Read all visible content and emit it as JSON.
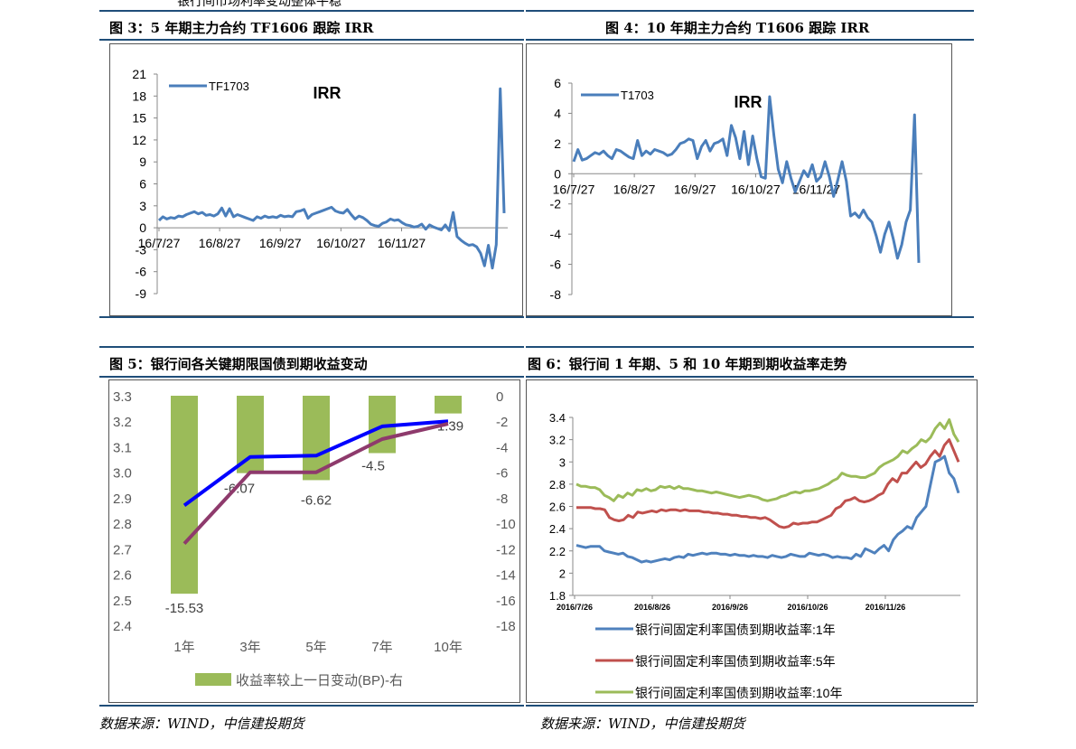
{
  "top_fragment": "银行间市场利率变动整体平稳",
  "fig3": {
    "title": "图 3：5 年期主力合约 TF1606 跟踪 IRR"
  },
  "fig4": {
    "title": "图 4：10 年期主力合约 T1606 跟踪 IRR"
  },
  "fig5": {
    "title": "图 5：银行间各关键期限国债到期收益变动"
  },
  "fig6": {
    "title": "图 6：银行间 1 年期、5 和 10 年期到期收益率走势"
  },
  "source_left": "数据来源：WIND，中信建投期货",
  "source_right": "数据来源：WIND，中信建投期货",
  "colors": {
    "rule": "#1f4e79",
    "irr": "#4a7ebb",
    "bar": "#9bbb59",
    "blue": "#0000ff",
    "maroon": "#8e3a6c",
    "y1": "#4f81bd",
    "y5": "#c0504d",
    "y10": "#9bbb59"
  },
  "chart_data": [
    {
      "type": "line",
      "title": "IRR",
      "xtick_labels": [
        "16/7/27",
        "16/8/27",
        "16/9/27",
        "16/10/27",
        "16/11/27"
      ],
      "ylim": [
        -9,
        21
      ],
      "yticks": [
        -9,
        -6,
        -3,
        0,
        3,
        6,
        9,
        12,
        15,
        18,
        21
      ],
      "legend": "top-left",
      "series": [
        {
          "name": "TF1703",
          "values": [
            1,
            1.5,
            1.2,
            1.4,
            1.3,
            1.6,
            1.5,
            1.8,
            2,
            2.2,
            1.9,
            2.1,
            1.7,
            1.8,
            1.6,
            1.9,
            2.7,
            1.6,
            2.6,
            1.5,
            1.8,
            1.6,
            1.4,
            1.2,
            1,
            1.5,
            1.3,
            1.6,
            1.4,
            1.5,
            1.4,
            1.7,
            1.5,
            1.6,
            1.5,
            2.2,
            2.3,
            2.5,
            1.3,
            1.8,
            2,
            2.2,
            2.4,
            2.6,
            2.8,
            2.3,
            2.1,
            2.0,
            2.5,
            1.8,
            1.2,
            1.6,
            1.4,
            1,
            0.5,
            0.3,
            0.2,
            0.6,
            0.8,
            1.2,
            1,
            1.1,
            0.7,
            0.4,
            0.3,
            0.1,
            0.2,
            0.5,
            -0.2,
            0.4,
            0.1,
            -0.1,
            -0.3,
            0.4,
            -0.4,
            2.1,
            -1.2,
            -1.7,
            -2.1,
            -2.4,
            -2.3,
            -2.6,
            -3.5,
            -5.2,
            -2.4,
            -5.5,
            -2.3,
            19,
            2
          ]
        }
      ]
    },
    {
      "type": "line",
      "title": "IRR",
      "xtick_labels": [
        "16/7/27",
        "16/8/27",
        "16/9/27",
        "16/10/27",
        "16/11/27"
      ],
      "ylim": [
        -8,
        6
      ],
      "yticks": [
        -8,
        -6,
        -4,
        -2,
        0,
        2,
        4,
        6
      ],
      "legend": "top-left",
      "series": [
        {
          "name": "T1703",
          "values": [
            0.8,
            1.6,
            0.9,
            1.0,
            1.2,
            1.4,
            1.3,
            1.5,
            1.2,
            1.0,
            1.6,
            1.5,
            1.3,
            1.1,
            1.0,
            2.2,
            1.2,
            1.5,
            1.3,
            1.6,
            1.5,
            1.4,
            1.2,
            1.3,
            1.6,
            2.0,
            2.1,
            2.3,
            2.2,
            1.0,
            1.8,
            2.2,
            1.5,
            2.0,
            2.1,
            2.3,
            1.2,
            3.2,
            2.4,
            1.0,
            2.8,
            0.6,
            2.5,
            1.0,
            -0.2,
            -0.3,
            5.1,
            2.5,
            0.3,
            -0.6,
            0.8,
            -0.3,
            -1.2,
            -0.5,
            0.2,
            -0.2,
            0.6,
            -0.5,
            -0.2,
            0.8,
            -0.2,
            -1.5,
            -0.4,
            0.8,
            -0.5,
            -2.8,
            -2.6,
            -2.9,
            -2.4,
            -2.9,
            -3.2,
            -4.1,
            -5.2,
            -4.0,
            -3.2,
            -4.3,
            -5.6,
            -4.7,
            -3.2,
            -2.4,
            3.9,
            -5.9
          ]
        }
      ]
    },
    {
      "type": "bar",
      "categories": [
        "1年",
        "3年",
        "5年",
        "7年",
        "10年"
      ],
      "ylim_left": [
        2.4,
        3.3
      ],
      "yticks_left": [
        2.4,
        2.5,
        2.6,
        2.7,
        2.8,
        2.9,
        3.0,
        3.1,
        3.2,
        3.3
      ],
      "ylim_right": [
        -18,
        0
      ],
      "yticks_right": [
        -18,
        -16,
        -14,
        -12,
        -10,
        -8,
        -6,
        -4,
        -2,
        0
      ],
      "series": [
        {
          "name": "收益率较上一日变动(BP)-右",
          "values": [
            -15.53,
            -6.07,
            -6.62,
            -4.5,
            -1.39
          ],
          "data_labels": [
            "-15.53",
            "-6.07",
            "-6.62",
            "-4.5",
            "-1.39"
          ]
        },
        {
          "name": "",
          "values": [
            2.87,
            3.06,
            3.065,
            3.18,
            3.2
          ]
        },
        {
          "name": "",
          "values": [
            2.72,
            3.0,
            3.0,
            3.13,
            3.19
          ]
        }
      ],
      "legend": "bottom"
    },
    {
      "type": "line",
      "xtick_labels": [
        "2016/7/26",
        "2016/8/26",
        "2016/9/26",
        "2016/10/26",
        "2016/11/26"
      ],
      "ylim": [
        1.8,
        3.4
      ],
      "yticks": [
        1.8,
        2,
        2.2,
        2.4,
        2.6,
        2.8,
        3,
        3.2,
        3.4
      ],
      "legend": "bottom",
      "series": [
        {
          "name": "银行间固定利率国债到期收益率:1年",
          "values": [
            2.25,
            2.24,
            2.23,
            2.24,
            2.24,
            2.24,
            2.2,
            2.19,
            2.18,
            2.17,
            2.18,
            2.15,
            2.14,
            2.12,
            2.1,
            2.11,
            2.1,
            2.11,
            2.12,
            2.13,
            2.12,
            2.14,
            2.15,
            2.14,
            2.17,
            2.16,
            2.17,
            2.18,
            2.17,
            2.18,
            2.18,
            2.17,
            2.17,
            2.16,
            2.17,
            2.16,
            2.16,
            2.15,
            2.16,
            2.15,
            2.15,
            2.14,
            2.16,
            2.15,
            2.14,
            2.15,
            2.17,
            2.16,
            2.15,
            2.15,
            2.18,
            2.17,
            2.16,
            2.17,
            2.16,
            2.14,
            2.15,
            2.14,
            2.14,
            2.13,
            2.17,
            2.15,
            2.22,
            2.2,
            2.18,
            2.22,
            2.25,
            2.2,
            2.3,
            2.35,
            2.38,
            2.42,
            2.4,
            2.5,
            2.55,
            2.6,
            2.8,
            3.0,
            3.02,
            3.05,
            2.9,
            2.85,
            2.72
          ]
        },
        {
          "name": "银行间固定利率国债到期收益率:5年",
          "values": [
            2.59,
            2.59,
            2.59,
            2.59,
            2.58,
            2.58,
            2.57,
            2.5,
            2.48,
            2.47,
            2.48,
            2.52,
            2.5,
            2.55,
            2.54,
            2.55,
            2.56,
            2.55,
            2.57,
            2.56,
            2.57,
            2.57,
            2.56,
            2.57,
            2.56,
            2.56,
            2.56,
            2.55,
            2.55,
            2.54,
            2.54,
            2.53,
            2.53,
            2.52,
            2.52,
            2.51,
            2.51,
            2.5,
            2.5,
            2.49,
            2.5,
            2.48,
            2.45,
            2.42,
            2.41,
            2.42,
            2.45,
            2.44,
            2.45,
            2.45,
            2.46,
            2.46,
            2.48,
            2.5,
            2.52,
            2.58,
            2.6,
            2.65,
            2.66,
            2.68,
            2.65,
            2.64,
            2.65,
            2.67,
            2.7,
            2.72,
            2.8,
            2.85,
            2.82,
            2.9,
            2.9,
            2.95,
            3.0,
            2.95,
            2.98,
            3.05,
            3.1,
            3.05,
            3.15,
            3.2,
            3.1,
            3.0
          ]
        },
        {
          "name": "银行间固定利率国债到期收益率:10年",
          "values": [
            2.8,
            2.78,
            2.78,
            2.77,
            2.77,
            2.75,
            2.7,
            2.68,
            2.65,
            2.7,
            2.68,
            2.72,
            2.7,
            2.75,
            2.74,
            2.76,
            2.74,
            2.75,
            2.78,
            2.77,
            2.78,
            2.76,
            2.78,
            2.76,
            2.76,
            2.75,
            2.74,
            2.74,
            2.73,
            2.72,
            2.73,
            2.72,
            2.71,
            2.7,
            2.69,
            2.68,
            2.69,
            2.7,
            2.69,
            2.68,
            2.66,
            2.65,
            2.66,
            2.67,
            2.69,
            2.7,
            2.72,
            2.73,
            2.72,
            2.74,
            2.74,
            2.75,
            2.76,
            2.78,
            2.8,
            2.83,
            2.85,
            2.9,
            2.88,
            2.87,
            2.87,
            2.86,
            2.86,
            2.88,
            2.9,
            2.95,
            2.98,
            3.0,
            3.02,
            3.05,
            3.1,
            3.08,
            3.12,
            3.15,
            3.2,
            3.18,
            3.22,
            3.3,
            3.35,
            3.3,
            3.38,
            3.25,
            3.18
          ]
        }
      ]
    }
  ]
}
